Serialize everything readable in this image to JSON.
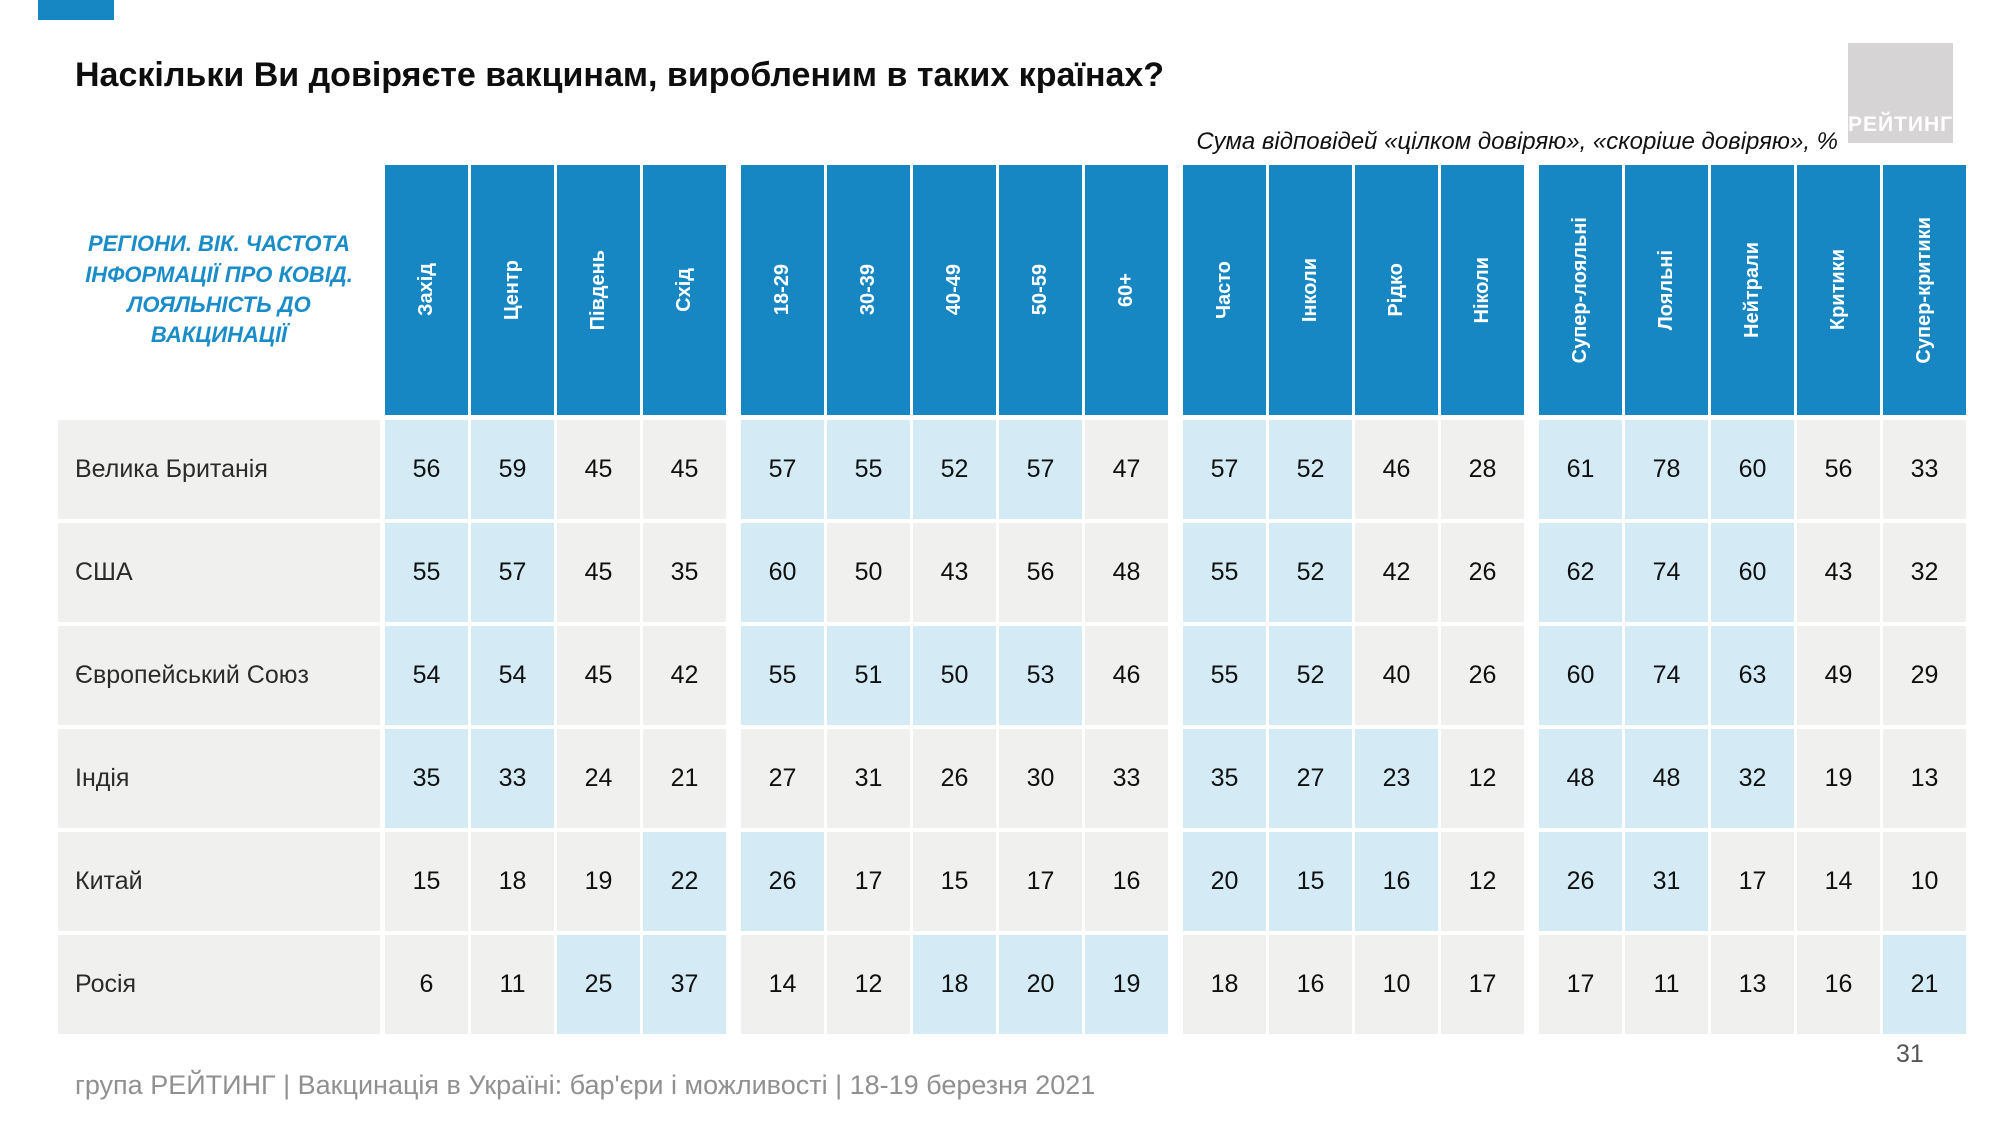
{
  "page": {
    "title": "Наскільки Ви довіряєте вакцинам, виробленим в таких країнах?",
    "subtitle": "Сума відповідей «цілком довіряю», «скоріше довіряю», %",
    "logo_text": "РЕЙТИНГ",
    "footer": "група РЕЙТИНГ | Вакцинація в Україні: бар'єри і можливості | 18-19 березня 2021",
    "page_number": "31",
    "accent_blue": "#1787c3",
    "highlight_blue": "#d4eaf5",
    "cell_gray": "#f0f0ef"
  },
  "chart_data": {
    "type": "table",
    "title": "Наскільки Ви довіряєте вакцинам, виробленим в таких країнах?",
    "subtitle": "Сума відповідей «цілком довіряю», «скоріше довіряю», %",
    "row_header": "РЕГІОНИ. ВІК. ЧАСТОТА ІНФОРМАЦІЇ ПРО КОВІД. ЛОЯЛЬНІСТЬ ДО ВАКЦИНАЦІЇ",
    "column_groups": [
      {
        "columns": [
          "Захід",
          "Центр",
          "Південь",
          "Схід"
        ]
      },
      {
        "columns": [
          "18-29",
          "30-39",
          "40-49",
          "50-59",
          "60+"
        ]
      },
      {
        "columns": [
          "Часто",
          "Інколи",
          "Рідко",
          "Ніколи"
        ]
      },
      {
        "columns": [
          "Супер-лояльні",
          "Лояльні",
          "Нейтрали",
          "Критики",
          "Супер-критики"
        ]
      }
    ],
    "rows": [
      {
        "label": "Велика Британія",
        "values": [
          [
            56,
            59,
            45,
            45
          ],
          [
            57,
            55,
            52,
            57,
            47
          ],
          [
            57,
            52,
            46,
            28
          ],
          [
            61,
            78,
            60,
            56,
            33
          ]
        ],
        "highlight": [
          [
            1,
            1,
            0,
            0
          ],
          [
            1,
            1,
            1,
            1,
            0
          ],
          [
            1,
            1,
            0,
            0
          ],
          [
            1,
            1,
            1,
            0,
            0
          ]
        ]
      },
      {
        "label": "США",
        "values": [
          [
            55,
            57,
            45,
            35
          ],
          [
            60,
            50,
            43,
            56,
            48
          ],
          [
            55,
            52,
            42,
            26
          ],
          [
            62,
            74,
            60,
            43,
            32
          ]
        ],
        "highlight": [
          [
            1,
            1,
            0,
            0
          ],
          [
            1,
            0,
            0,
            0,
            0
          ],
          [
            1,
            1,
            0,
            0
          ],
          [
            1,
            1,
            1,
            0,
            0
          ]
        ]
      },
      {
        "label": "Європейський Союз",
        "values": [
          [
            54,
            54,
            45,
            42
          ],
          [
            55,
            51,
            50,
            53,
            46
          ],
          [
            55,
            52,
            40,
            26
          ],
          [
            60,
            74,
            63,
            49,
            29
          ]
        ],
        "highlight": [
          [
            1,
            1,
            0,
            0
          ],
          [
            1,
            1,
            1,
            1,
            0
          ],
          [
            1,
            1,
            0,
            0
          ],
          [
            1,
            1,
            1,
            0,
            0
          ]
        ]
      },
      {
        "label": "Індія",
        "values": [
          [
            35,
            33,
            24,
            21
          ],
          [
            27,
            31,
            26,
            30,
            33
          ],
          [
            35,
            27,
            23,
            12
          ],
          [
            48,
            48,
            32,
            19,
            13
          ]
        ],
        "highlight": [
          [
            1,
            1,
            0,
            0
          ],
          [
            0,
            0,
            0,
            0,
            0
          ],
          [
            1,
            1,
            1,
            0
          ],
          [
            1,
            1,
            1,
            0,
            0
          ]
        ]
      },
      {
        "label": "Китай",
        "values": [
          [
            15,
            18,
            19,
            22
          ],
          [
            26,
            17,
            15,
            17,
            16
          ],
          [
            20,
            15,
            16,
            12
          ],
          [
            26,
            31,
            17,
            14,
            10
          ]
        ],
        "highlight": [
          [
            0,
            0,
            0,
            1
          ],
          [
            1,
            0,
            0,
            0,
            0
          ],
          [
            1,
            1,
            1,
            0
          ],
          [
            1,
            1,
            0,
            0,
            0
          ]
        ]
      },
      {
        "label": "Росія",
        "values": [
          [
            6,
            11,
            25,
            37
          ],
          [
            14,
            12,
            18,
            20,
            19
          ],
          [
            18,
            16,
            10,
            17
          ],
          [
            17,
            11,
            13,
            16,
            21
          ]
        ],
        "highlight": [
          [
            0,
            0,
            1,
            1
          ],
          [
            0,
            0,
            1,
            1,
            1
          ],
          [
            0,
            0,
            0,
            0
          ],
          [
            0,
            0,
            0,
            0,
            1
          ]
        ]
      }
    ]
  }
}
